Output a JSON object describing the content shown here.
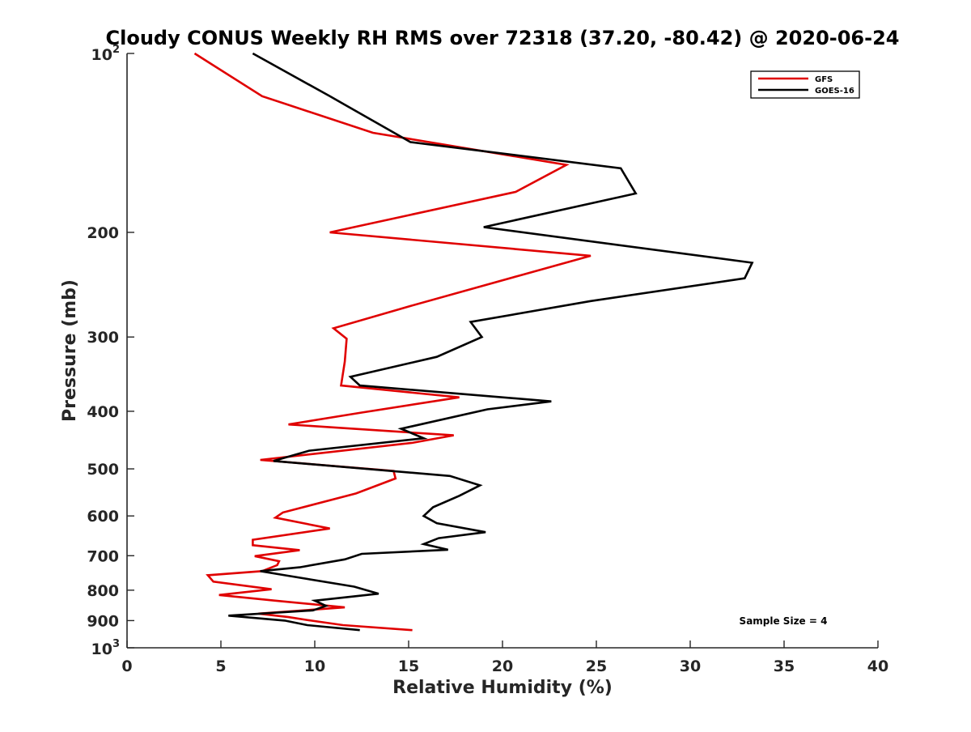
{
  "chart_data": {
    "type": "line",
    "title": "Cloudy CONUS Weekly RH RMS over 72318 (37.20, -80.42) @ 2020-06-24",
    "xlabel": "Relative Humidity (%)",
    "ylabel": "Pressure (mb)",
    "xlim": [
      0,
      40
    ],
    "ylim": [
      100,
      1000
    ],
    "yscale": "log",
    "y_reversed": true,
    "xticks": [
      0,
      5,
      10,
      15,
      20,
      25,
      30,
      35,
      40
    ],
    "yticks": [
      {
        "value": 100,
        "base": "10",
        "exp": "2"
      },
      {
        "value": 200,
        "label": "200"
      },
      {
        "value": 300,
        "label": "300"
      },
      {
        "value": 400,
        "label": "400"
      },
      {
        "value": 500,
        "label": "500"
      },
      {
        "value": 600,
        "label": "600"
      },
      {
        "value": 700,
        "label": "700"
      },
      {
        "value": 800,
        "label": "800"
      },
      {
        "value": 900,
        "label": "900"
      },
      {
        "value": 1000,
        "base": "10",
        "exp": "3"
      }
    ],
    "grid": false,
    "legend_position": "top-right",
    "annotation": "Sample Size = 4",
    "series": [
      {
        "name": "GFS",
        "color": "#e00000",
        "points": [
          [
            3.6,
            100
          ],
          [
            7.2,
            118
          ],
          [
            13.1,
            136
          ],
          [
            23.4,
            154
          ],
          [
            20.7,
            171
          ],
          [
            10.8,
            200
          ],
          [
            24.7,
            219
          ],
          [
            21.0,
            236
          ],
          [
            15.1,
            266
          ],
          [
            11.0,
            290
          ],
          [
            11.7,
            302
          ],
          [
            11.6,
            330
          ],
          [
            11.4,
            362
          ],
          [
            17.7,
            379
          ],
          [
            12.5,
            402
          ],
          [
            8.6,
            421
          ],
          [
            17.4,
            439
          ],
          [
            15.2,
            452
          ],
          [
            7.1,
            483
          ],
          [
            14.2,
            504
          ],
          [
            14.3,
            519
          ],
          [
            12.2,
            550
          ],
          [
            8.3,
            592
          ],
          [
            7.9,
            604
          ],
          [
            10.8,
            630
          ],
          [
            6.7,
            658
          ],
          [
            6.7,
            672
          ],
          [
            9.2,
            685
          ],
          [
            6.8,
            701
          ],
          [
            8.1,
            715
          ],
          [
            8.0,
            726
          ],
          [
            7.2,
            743
          ],
          [
            4.3,
            755
          ],
          [
            4.6,
            774
          ],
          [
            7.7,
            797
          ],
          [
            4.9,
            815
          ],
          [
            7.9,
            833
          ],
          [
            11.6,
            855
          ],
          [
            7.0,
            876
          ],
          [
            8.6,
            888
          ],
          [
            9.8,
            900
          ],
          [
            11.5,
            916
          ],
          [
            15.2,
            934
          ]
        ]
      },
      {
        "name": "GOES-16",
        "color": "#000000",
        "points": [
          [
            6.7,
            100
          ],
          [
            10.8,
            118
          ],
          [
            15.1,
            141
          ],
          [
            26.3,
            156
          ],
          [
            27.1,
            172
          ],
          [
            19.0,
            196
          ],
          [
            33.3,
            225
          ],
          [
            32.9,
            239
          ],
          [
            24.7,
            261
          ],
          [
            18.3,
            283
          ],
          [
            18.9,
            300
          ],
          [
            16.5,
            324
          ],
          [
            11.9,
            350
          ],
          [
            12.4,
            362
          ],
          [
            22.6,
            385
          ],
          [
            19.2,
            397
          ],
          [
            14.6,
            428
          ],
          [
            15.8,
            444
          ],
          [
            9.7,
            466
          ],
          [
            7.8,
            485
          ],
          [
            17.2,
            514
          ],
          [
            18.8,
            533
          ],
          [
            17.7,
            555
          ],
          [
            16.3,
            580
          ],
          [
            15.8,
            600
          ],
          [
            16.5,
            617
          ],
          [
            19.1,
            639
          ],
          [
            16.6,
            654
          ],
          [
            15.8,
            669
          ],
          [
            17.1,
            684
          ],
          [
            12.5,
            695
          ],
          [
            11.6,
            710
          ],
          [
            9.2,
            732
          ],
          [
            7.1,
            743
          ],
          [
            8.4,
            755
          ],
          [
            12.1,
            789
          ],
          [
            13.4,
            811
          ],
          [
            10.0,
            833
          ],
          [
            10.6,
            850
          ],
          [
            9.9,
            865
          ],
          [
            5.4,
            883
          ],
          [
            8.4,
            900
          ],
          [
            9.6,
            916
          ],
          [
            12.4,
            934
          ]
        ]
      }
    ]
  }
}
